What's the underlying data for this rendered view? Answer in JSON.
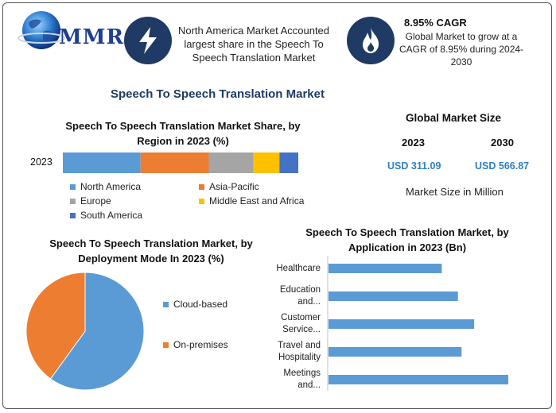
{
  "header": {
    "logo_text": "MMR",
    "box1_text": "North America Market Accounted largest share in the Speech To Speech Translation Market",
    "box2_title": "8.95% CAGR",
    "box2_text": "Global Market to grow at a CAGR of 8.95% during 2024-2030"
  },
  "main_title": "Speech To Speech Translation Market",
  "market_size": {
    "title": "Global Market Size",
    "year1": "2023",
    "year2": "2030",
    "value1": "USD 311.09",
    "value2": "USD 566.87",
    "note": "Market Size in Million"
  },
  "colors": {
    "north_america": "#5b9bd5",
    "asia_pacific": "#ed7d31",
    "europe": "#a5a5a5",
    "middle_east_africa": "#ffc000",
    "south_america": "#4472c4",
    "navy": "#1f3a64"
  },
  "chart_data": [
    {
      "type": "bar",
      "orientation": "horizontal-stacked",
      "title": "Speech To Speech Translation Market Share, by Region in 2023 (%)",
      "categories": [
        "2023"
      ],
      "series": [
        {
          "name": "North America",
          "values": [
            33
          ]
        },
        {
          "name": "Asia-Pacific",
          "values": [
            29
          ]
        },
        {
          "name": "Europe",
          "values": [
            19
          ]
        },
        {
          "name": "Middle East and Africa",
          "values": [
            11
          ]
        },
        {
          "name": "South America",
          "values": [
            8
          ]
        }
      ],
      "legend": "bottom"
    },
    {
      "type": "pie",
      "title": "Speech To Speech Translation Market, by Deployment Mode In 2023 (%)",
      "labels": [
        "Cloud-based",
        "On-premises"
      ],
      "values": [
        60,
        40
      ],
      "legend": "right"
    },
    {
      "type": "bar",
      "orientation": "horizontal",
      "title": "Speech To Speech Translation Market, by Application in 2023 (Bn)",
      "categories": [
        "Healthcare",
        "Education and...",
        "Customer Service...",
        "Travel and Hospitality",
        "Meetings and..."
      ],
      "category_lines": [
        [
          "Healthcare"
        ],
        [
          "Education",
          "and..."
        ],
        [
          "Customer",
          "Service..."
        ],
        [
          "Travel and",
          "Hospitality"
        ],
        [
          "Meetings",
          "and..."
        ]
      ],
      "values": [
        63,
        72,
        81,
        74,
        100
      ]
    }
  ]
}
